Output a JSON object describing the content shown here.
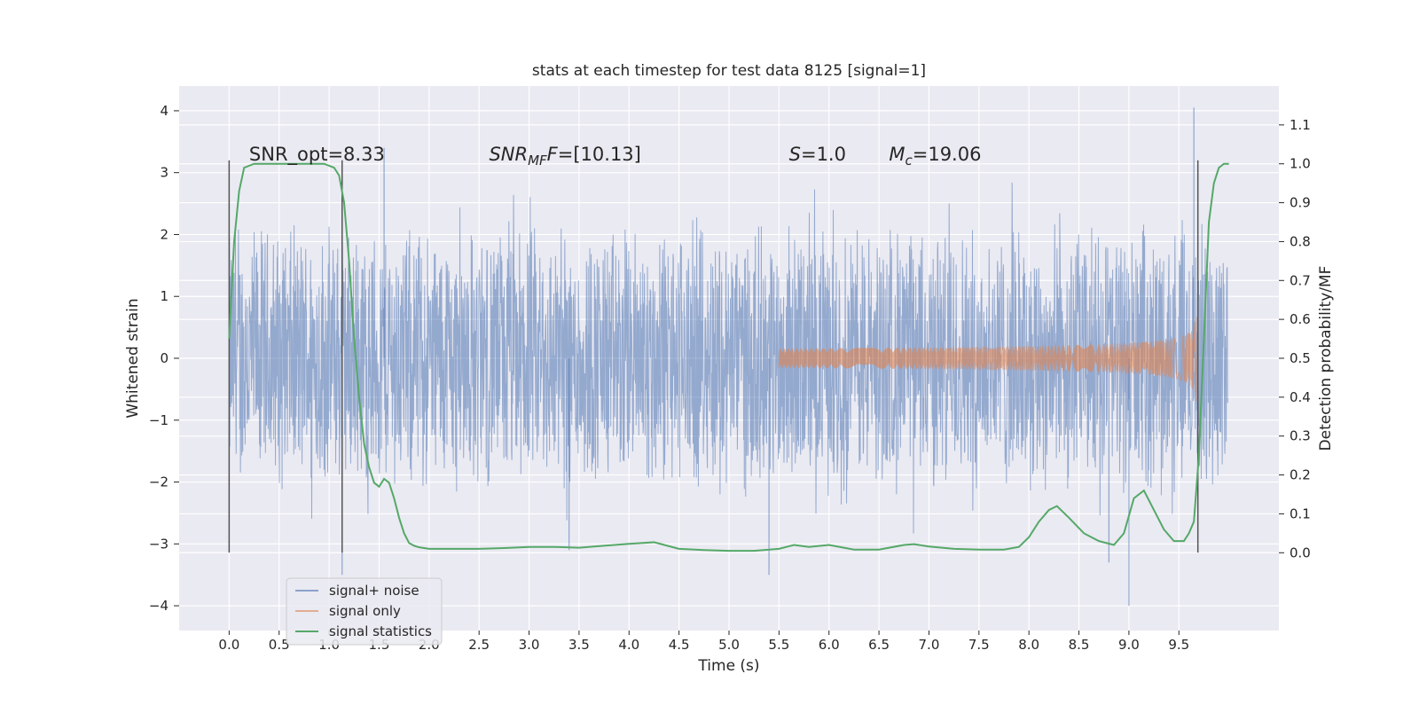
{
  "chart_data": {
    "type": "line",
    "title": "stats at each timestep for test data 8125 [signal=1]",
    "xlabel": "Time (s)",
    "ylabel_left": "Whitened strain",
    "ylabel_right": "Detection probability/MF",
    "xlim": [
      -0.5,
      10.5
    ],
    "ylim_left": [
      -4.4,
      4.4
    ],
    "ylim_right": [
      -0.2,
      1.2
    ],
    "x_ticks": [
      0.0,
      0.5,
      1.0,
      1.5,
      2.0,
      2.5,
      3.0,
      3.5,
      4.0,
      4.5,
      5.0,
      5.5,
      6.0,
      6.5,
      7.0,
      7.5,
      8.0,
      8.5,
      9.0,
      9.5
    ],
    "x_tick_labels": [
      "0.0",
      "0.5",
      "1.0",
      "1.5",
      "2.0",
      "2.5",
      "3.0",
      "3.5",
      "4.0",
      "4.5",
      "5.0",
      "5.5",
      "6.0",
      "6.5",
      "7.0",
      "7.5",
      "8.0",
      "8.5",
      "9.0",
      "9.5"
    ],
    "y_left_ticks": [
      4,
      3,
      2,
      1,
      0,
      -1,
      -2,
      -3,
      -4
    ],
    "y_left_tick_labels": [
      "4",
      "3",
      "2",
      "1",
      "0",
      "−1",
      "−2",
      "−3",
      "−4"
    ],
    "y_right_ticks": [
      1.1,
      1.0,
      0.9,
      0.8,
      0.7,
      0.6,
      0.5,
      0.4,
      0.3,
      0.2,
      0.1,
      0.0
    ],
    "y_right_tick_labels": [
      "1.1",
      "1.0",
      "0.9",
      "0.8",
      "0.7",
      "0.6",
      "0.5",
      "0.4",
      "0.3",
      "0.2",
      "0.1",
      "0.0"
    ],
    "grid": true,
    "legend_position": "lower-left",
    "series": [
      {
        "name": "signal+ noise",
        "axis": "left",
        "color": "#4c72b0",
        "x_range": [
          0.0,
          9.99
        ],
        "approx_envelope": {
          "typical_abs_max": 2.3,
          "peak_max": 4.05,
          "peak_min": -4.0
        }
      },
      {
        "name": "signal only",
        "axis": "left",
        "color": "#dd8452",
        "kind": "chirp",
        "onset": 5.5,
        "merger": 9.68,
        "peak_amplitude": 0.9
      },
      {
        "name": "signal statistics",
        "axis": "right",
        "color": "#55a868",
        "x": [
          0.0,
          0.05,
          0.1,
          0.15,
          0.25,
          0.4,
          0.6,
          0.8,
          0.95,
          1.05,
          1.1,
          1.15,
          1.2,
          1.25,
          1.3,
          1.35,
          1.4,
          1.45,
          1.5,
          1.55,
          1.6,
          1.65,
          1.7,
          1.75,
          1.8,
          1.85,
          1.9,
          2.0,
          2.25,
          2.5,
          2.75,
          3.0,
          3.25,
          3.5,
          3.75,
          4.0,
          4.25,
          4.5,
          4.75,
          5.0,
          5.25,
          5.5,
          5.65,
          5.8,
          6.0,
          6.25,
          6.5,
          6.75,
          6.85,
          7.0,
          7.25,
          7.5,
          7.75,
          7.9,
          8.0,
          8.1,
          8.2,
          8.28,
          8.4,
          8.55,
          8.7,
          8.85,
          8.95,
          9.05,
          9.15,
          9.25,
          9.35,
          9.45,
          9.55,
          9.6,
          9.65,
          9.7,
          9.75,
          9.8,
          9.85,
          9.9,
          9.95,
          10.0
        ],
        "y": [
          0.55,
          0.8,
          0.93,
          0.99,
          1.0,
          1.0,
          1.0,
          1.0,
          1.0,
          0.99,
          0.97,
          0.9,
          0.75,
          0.55,
          0.4,
          0.28,
          0.22,
          0.18,
          0.17,
          0.19,
          0.18,
          0.14,
          0.09,
          0.05,
          0.025,
          0.018,
          0.014,
          0.01,
          0.01,
          0.01,
          0.012,
          0.015,
          0.015,
          0.013,
          0.018,
          0.023,
          0.027,
          0.01,
          0.007,
          0.005,
          0.005,
          0.01,
          0.02,
          0.015,
          0.02,
          0.008,
          0.008,
          0.02,
          0.022,
          0.016,
          0.01,
          0.008,
          0.008,
          0.015,
          0.04,
          0.08,
          0.11,
          0.12,
          0.09,
          0.05,
          0.03,
          0.02,
          0.05,
          0.14,
          0.16,
          0.11,
          0.06,
          0.03,
          0.03,
          0.05,
          0.08,
          0.25,
          0.55,
          0.85,
          0.95,
          0.99,
          1.0,
          1.0
        ]
      }
    ],
    "vertical_lines": {
      "color": "#555555",
      "x": [
        0.0,
        1.13,
        9.69
      ],
      "y_range_left": [
        -3.14,
        3.2
      ]
    },
    "annotations": [
      {
        "kind": "plain",
        "text": "SNR_opt=8.33",
        "x": 0.2,
        "y": 3.3
      },
      {
        "kind": "math",
        "base": "SNR",
        "sub": "MF",
        "after": "F",
        "value": "=[10.13]",
        "x": 2.6,
        "y": 3.3
      },
      {
        "kind": "math",
        "base": "S",
        "sub": "",
        "after": "",
        "value": "=1.0",
        "x": 5.6,
        "y": 3.3
      },
      {
        "kind": "math",
        "base": "M",
        "sub": "c",
        "after": "",
        "value": "=19.06",
        "x": 6.6,
        "y": 3.3
      }
    ],
    "colors": {
      "background": "#eaeaf2",
      "grid": "#ffffff",
      "noise": "#4c72b0",
      "signal": "#dd8452",
      "stat": "#55a868",
      "vline": "#555555"
    }
  }
}
